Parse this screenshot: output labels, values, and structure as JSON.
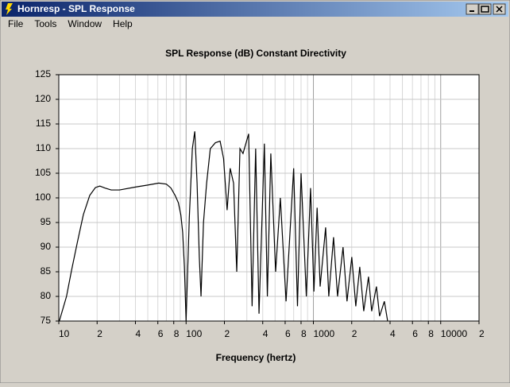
{
  "window": {
    "title": "Hornresp - SPL Response"
  },
  "menu": [
    "File",
    "Tools",
    "Window",
    "Help"
  ],
  "chart_data": {
    "type": "line",
    "title": "SPL Response (dB)   Constant Directivity",
    "xlabel": "Frequency (hertz)",
    "xscale": "log",
    "grid": true,
    "minor_grid": true,
    "xlim": [
      10,
      20000
    ],
    "ylim": [
      75,
      125
    ],
    "xticks": [
      10,
      {
        "value": 20,
        "label": "2"
      },
      {
        "value": 40,
        "label": "4"
      },
      {
        "value": 60,
        "label": "6"
      },
      {
        "value": 80,
        "label": "8"
      },
      100,
      {
        "value": 200,
        "label": "2"
      },
      {
        "value": 400,
        "label": "4"
      },
      {
        "value": 600,
        "label": "6"
      },
      {
        "value": 800,
        "label": "8"
      },
      1000,
      {
        "value": 2000,
        "label": "2"
      },
      {
        "value": 4000,
        "label": "4"
      },
      {
        "value": 6000,
        "label": "6"
      },
      {
        "value": 8000,
        "label": "8"
      },
      10000,
      {
        "value": 20000,
        "label": "2"
      }
    ],
    "yticks": [
      75,
      80,
      85,
      90,
      95,
      100,
      105,
      110,
      115,
      120,
      125
    ],
    "series": [
      {
        "color": "#000000",
        "x": [
          10.1,
          11.5,
          12.6,
          14,
          15.6,
          17.5,
          19.4,
          21,
          23,
          25.8,
          30,
          40,
          50,
          61,
          70,
          76,
          82,
          87,
          91,
          94,
          97,
          100,
          106,
          112,
          117,
          122,
          127,
          131,
          137,
          145,
          155,
          170,
          185,
          197,
          210,
          222,
          236,
          250,
          265,
          280,
          310,
          330,
          352,
          374,
          412,
          435,
          463,
          505,
          550,
          610,
          700,
          750,
          800,
          880,
          950,
          1010,
          1070,
          1130,
          1248,
          1321,
          1440,
          1548,
          1710,
          1837,
          2003,
          2153,
          2313,
          2486,
          2710,
          2870,
          3128,
          3312,
          3610,
          3829
        ],
        "values": [
          75,
          80,
          85.3,
          91,
          96.6,
          100.5,
          102.1,
          102.4,
          102,
          101.6,
          101.6,
          102.2,
          102.6,
          103,
          102.8,
          102,
          100.5,
          99,
          96.5,
          93,
          86,
          75,
          96,
          110,
          113.5,
          103,
          88,
          80,
          95,
          103,
          110,
          111.2,
          111.5,
          108,
          97.5,
          106,
          103,
          85,
          110,
          109,
          113,
          78,
          110,
          76.5,
          111,
          80,
          109,
          85,
          100,
          79,
          106,
          78,
          105,
          80,
          102,
          81,
          98,
          82,
          94,
          80,
          92,
          80,
          90,
          79,
          88,
          78,
          86,
          77,
          84,
          77,
          82,
          76,
          79,
          75
        ]
      }
    ]
  }
}
